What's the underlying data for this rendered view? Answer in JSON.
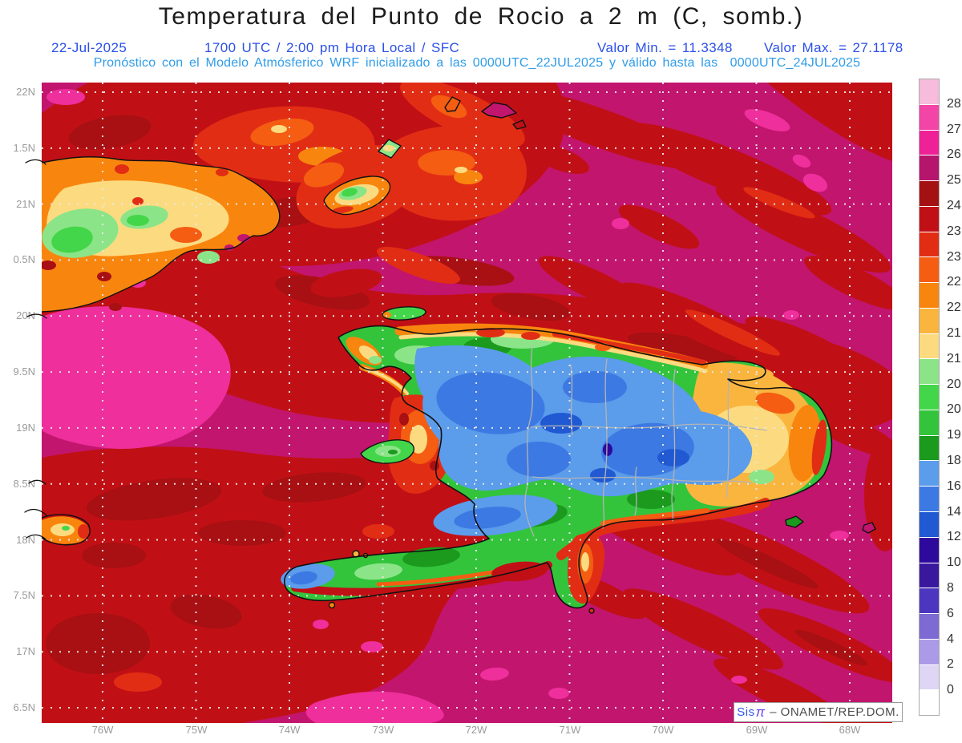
{
  "header": {
    "title": "Temperatura del Punto de Rocio a 2 m (C, somb.)",
    "date": "22-Jul-2025",
    "time": "1700 UTC / 2:00 pm Hora Local / SFC",
    "valor_min": "Valor Min. = 11.3348",
    "valor_max": "Valor Max. = 27.1178",
    "forecast_line": "Pronóstico con el Modelo Atmósferico WRF inicializado a las 0000UTC_22JUL2025 y válido hasta las  0000UTC_24JUL2025"
  },
  "axes": {
    "lat_labels": [
      "22N",
      "1.5N",
      "21N",
      "0.5N",
      "20N",
      "9.5N",
      "19N",
      "8.5N",
      "18N",
      "7.5N",
      "17N",
      "6.5N"
    ],
    "lon_labels": [
      "76W",
      "75W",
      "74W",
      "73W",
      "72W",
      "71W",
      "70W",
      "69W",
      "68W"
    ]
  },
  "colorbar": {
    "tick_labels": [
      "28",
      "27",
      "26",
      "25",
      "24.5",
      "23.5",
      "23",
      "22.5",
      "22",
      "21.5",
      "21",
      "20.5",
      "20",
      "19",
      "18",
      "16",
      "14",
      "12",
      "10",
      "8",
      "6",
      "4",
      "2",
      "0"
    ],
    "segment_colors": [
      "#f7bcdb",
      "#f344a7",
      "#ee2196",
      "#b5156d",
      "#a31113",
      "#c11015",
      "#e22d15",
      "#f45d12",
      "#f8860e",
      "#fab53f",
      "#fcdb80",
      "#8ce488",
      "#44d64a",
      "#33c43c",
      "#1b9a1e",
      "#5b9ceb",
      "#3d79e2",
      "#2159d2",
      "#2d0a9c",
      "#39189e",
      "#4d36bf",
      "#7d6ad2",
      "#ab9ae6",
      "#ded6f4",
      "#ffffff"
    ]
  },
  "watermark": {
    "brand": "Sis",
    "pi": "π",
    "suffix": "– ONAMET/REP.DOM."
  },
  "palette": {
    "mag": "#c2156e",
    "pink": "#ee2f9c",
    "dred": "#c11015",
    "ddred": "#a81013",
    "red": "#e22d15",
    "ored": "#f45d12",
    "orange": "#f8860e",
    "lorange": "#fab53f",
    "yellow": "#fcdb80",
    "lgreen": "#8ce488",
    "bgreen": "#44d64a",
    "green": "#33c43c",
    "dgreen": "#1b9a1e",
    "lblue": "#5b9ceb",
    "blue": "#3d79e2",
    "dblue": "#2159d2",
    "navy": "#2d0a9c",
    "coast": "#111111",
    "admin": "#b4b4b4",
    "text_blue": "#2b50e8",
    "text_skyblue": "#2f9ce8",
    "axis_gray": "#9a9a9a"
  }
}
